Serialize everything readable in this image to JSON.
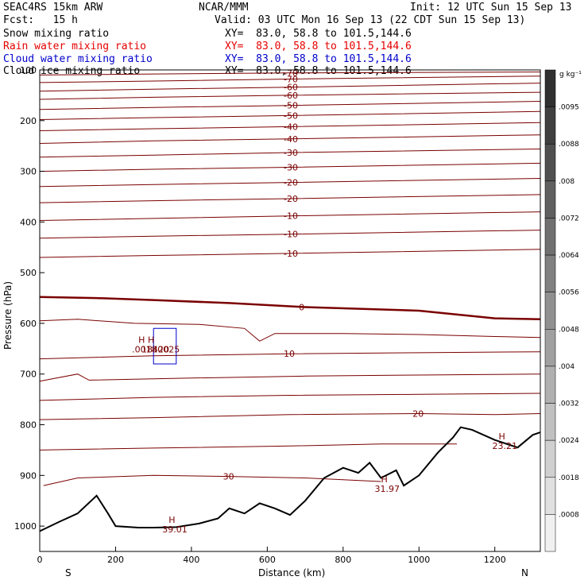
{
  "header": {
    "model": "SEAC4RS 15km ARW",
    "org": "NCAR/MMM",
    "init": "Init: 12 UTC Sun 15 Sep 13",
    "fcst": "Fcst:   15 h",
    "valid": "Valid: 03 UTC Mon 16 Sep 13 (22 CDT Sun 15 Sep 13)",
    "fields": [
      {
        "name": "Snow mixing ratio",
        "xy": "XY=  83.0, 58.8 to 101.5,144.6",
        "color": "#000000"
      },
      {
        "name": "Rain water mixing ratio",
        "xy": "XY=  83.0, 58.8 to 101.5,144.6",
        "color": "#e60000"
      },
      {
        "name": "Cloud water mixing ratio",
        "xy": "XY=  83.0, 58.8 to 101.5,144.6",
        "color": "#0000cc"
      },
      {
        "name": "Cloud ice mixing ratio",
        "xy": "XY=  83.0, 58.8 to 101.5,144.6",
        "color": "#000000"
      }
    ]
  },
  "chart_data": {
    "type": "contour",
    "xlabel": "Distance (km)",
    "ylabel": "Pressure (hPa)",
    "xlim": [
      0,
      1320
    ],
    "ylim": [
      1050,
      100
    ],
    "x_ticks": [
      0,
      200,
      400,
      600,
      800,
      1000,
      1200
    ],
    "y_ticks": [
      100,
      200,
      300,
      400,
      500,
      600,
      700,
      800,
      900,
      1000
    ],
    "x_ends": {
      "left": "S",
      "right": "N"
    },
    "contour_color": "#7a0000",
    "terrain_color": "#000000",
    "temperature_contours": [
      {
        "label": "-70",
        "levels": [
          [
            0,
            110
          ],
          [
            300,
            108
          ],
          [
            660,
            106
          ],
          [
            1320,
            104
          ]
        ]
      },
      {
        "label": "-70",
        "levels": [
          [
            0,
            125
          ],
          [
            300,
            122
          ],
          [
            660,
            118
          ],
          [
            1320,
            112
          ]
        ]
      },
      {
        "label": "-60",
        "levels": [
          [
            0,
            142
          ],
          [
            300,
            138
          ],
          [
            660,
            134
          ],
          [
            1320,
            126
          ]
        ]
      },
      {
        "label": "-60",
        "levels": [
          [
            0,
            158
          ],
          [
            300,
            154
          ],
          [
            660,
            150
          ],
          [
            1320,
            144
          ]
        ]
      },
      {
        "label": "-50",
        "levels": [
          [
            0,
            178
          ],
          [
            300,
            174
          ],
          [
            660,
            170
          ],
          [
            1320,
            162
          ]
        ]
      },
      {
        "label": "-50",
        "levels": [
          [
            0,
            198
          ],
          [
            300,
            194
          ],
          [
            660,
            190
          ],
          [
            1320,
            182
          ]
        ]
      },
      {
        "label": "-40",
        "levels": [
          [
            0,
            220
          ],
          [
            300,
            216
          ],
          [
            660,
            212
          ],
          [
            1320,
            204
          ]
        ]
      },
      {
        "label": "-40",
        "levels": [
          [
            0,
            245
          ],
          [
            300,
            240
          ],
          [
            660,
            236
          ],
          [
            1320,
            228
          ]
        ]
      },
      {
        "label": "-30",
        "levels": [
          [
            0,
            272
          ],
          [
            300,
            268
          ],
          [
            660,
            263
          ],
          [
            1320,
            256
          ]
        ]
      },
      {
        "label": "-30",
        "levels": [
          [
            0,
            300
          ],
          [
            300,
            296
          ],
          [
            660,
            292
          ],
          [
            1320,
            284
          ]
        ]
      },
      {
        "label": "-20",
        "levels": [
          [
            0,
            330
          ],
          [
            300,
            326
          ],
          [
            660,
            322
          ],
          [
            1320,
            314
          ]
        ]
      },
      {
        "label": "-20",
        "levels": [
          [
            0,
            362
          ],
          [
            300,
            358
          ],
          [
            660,
            354
          ],
          [
            1320,
            346
          ]
        ]
      },
      {
        "label": "-10",
        "levels": [
          [
            0,
            397
          ],
          [
            300,
            393
          ],
          [
            660,
            388
          ],
          [
            1320,
            380
          ]
        ]
      },
      {
        "label": "-10",
        "levels": [
          [
            0,
            432
          ],
          [
            300,
            428
          ],
          [
            660,
            424
          ],
          [
            1320,
            416
          ]
        ]
      },
      {
        "label": "-10",
        "levels": [
          [
            0,
            470
          ],
          [
            300,
            466
          ],
          [
            660,
            462
          ],
          [
            1320,
            454
          ]
        ]
      },
      {
        "label": "0",
        "levels": [
          [
            0,
            548
          ],
          [
            150,
            550
          ],
          [
            300,
            554
          ],
          [
            500,
            560
          ],
          [
            700,
            568
          ],
          [
            1000,
            575
          ],
          [
            1200,
            590
          ],
          [
            1320,
            592
          ]
        ]
      },
      {
        "label": "",
        "levels": [
          [
            0,
            595
          ],
          [
            100,
            592
          ],
          [
            250,
            600
          ],
          [
            420,
            602
          ],
          [
            540,
            610
          ],
          [
            580,
            635
          ],
          [
            620,
            620
          ],
          [
            800,
            620
          ],
          [
            1000,
            622
          ],
          [
            1200,
            626
          ],
          [
            1320,
            628
          ]
        ]
      },
      {
        "label": "10",
        "levels": [
          [
            0,
            670
          ],
          [
            300,
            664
          ],
          [
            660,
            660
          ],
          [
            1000,
            658
          ],
          [
            1320,
            656
          ]
        ]
      },
      {
        "label": "",
        "levels": [
          [
            0,
            714
          ],
          [
            100,
            700
          ],
          [
            130,
            712
          ],
          [
            400,
            708
          ],
          [
            700,
            704
          ],
          [
            1000,
            702
          ],
          [
            1320,
            700
          ]
        ]
      },
      {
        "label": "",
        "levels": [
          [
            0,
            752
          ],
          [
            300,
            746
          ],
          [
            660,
            742
          ],
          [
            1000,
            740
          ],
          [
            1320,
            738
          ]
        ]
      },
      {
        "label": "20",
        "levels": [
          [
            0,
            790
          ],
          [
            300,
            786
          ],
          [
            660,
            780
          ],
          [
            1000,
            778
          ],
          [
            1200,
            780
          ],
          [
            1320,
            778
          ]
        ]
      },
      {
        "label": "",
        "levels": [
          [
            0,
            850
          ],
          [
            300,
            846
          ],
          [
            660,
            842
          ],
          [
            900,
            838
          ],
          [
            1100,
            838
          ]
        ]
      },
      {
        "label": "30",
        "levels": [
          [
            10,
            920
          ],
          [
            100,
            905
          ],
          [
            300,
            900
          ],
          [
            500,
            902
          ],
          [
            700,
            905
          ],
          [
            900,
            912
          ]
        ]
      }
    ],
    "terrain": [
      [
        0,
        1010
      ],
      [
        50,
        992
      ],
      [
        100,
        975
      ],
      [
        150,
        940
      ],
      [
        180,
        975
      ],
      [
        200,
        1000
      ],
      [
        260,
        1003
      ],
      [
        300,
        1003
      ],
      [
        360,
        1002
      ],
      [
        420,
        995
      ],
      [
        470,
        985
      ],
      [
        500,
        965
      ],
      [
        540,
        975
      ],
      [
        580,
        955
      ],
      [
        620,
        965
      ],
      [
        660,
        978
      ],
      [
        700,
        950
      ],
      [
        750,
        905
      ],
      [
        800,
        885
      ],
      [
        840,
        895
      ],
      [
        870,
        875
      ],
      [
        900,
        905
      ],
      [
        940,
        890
      ],
      [
        960,
        920
      ],
      [
        1000,
        900
      ],
      [
        1050,
        855
      ],
      [
        1090,
        825
      ],
      [
        1110,
        805
      ],
      [
        1140,
        810
      ],
      [
        1200,
        830
      ],
      [
        1260,
        845
      ],
      [
        1300,
        820
      ],
      [
        1320,
        815
      ]
    ],
    "maxima_labels": [
      {
        "text": "H",
        "sub": "39.01",
        "x": 340,
        "p": 1000
      },
      {
        "text": "H",
        "sub": "31.97",
        "x": 900,
        "p": 920
      },
      {
        "text": "H",
        "sub": "23.21",
        "x": 1210,
        "p": 835
      },
      {
        "text": "H",
        "sub": ".0018",
        "x": 260,
        "p": 645
      },
      {
        "text": "H",
        "sub": "18420",
        "x": 285,
        "p": 645
      },
      {
        "text": "",
        "sub": ".0025",
        "x": 320,
        "p": 645
      }
    ],
    "cloud_water_contour": {
      "levels": [
        [
          300,
          610
        ],
        [
          360,
          610
        ],
        [
          360,
          680
        ],
        [
          300,
          680
        ],
        [
          300,
          610
        ]
      ],
      "color": "#0000cc"
    },
    "colorbar": {
      "unit": "g kg⁻¹",
      "labels": [
        ".0095",
        ".0088",
        ".008",
        ".0072",
        ".0064",
        ".0056",
        ".0048",
        ".004",
        ".0032",
        ".0024",
        ".0018",
        ".0008"
      ],
      "colors": [
        "#303030",
        "#404040",
        "#505050",
        "#606060",
        "#707070",
        "#808080",
        "#909090",
        "#a0a0a0",
        "#b0b0b0",
        "#c0c0c0",
        "#d0d0d0",
        "#e0e0e0",
        "#f0f0f0"
      ]
    }
  }
}
